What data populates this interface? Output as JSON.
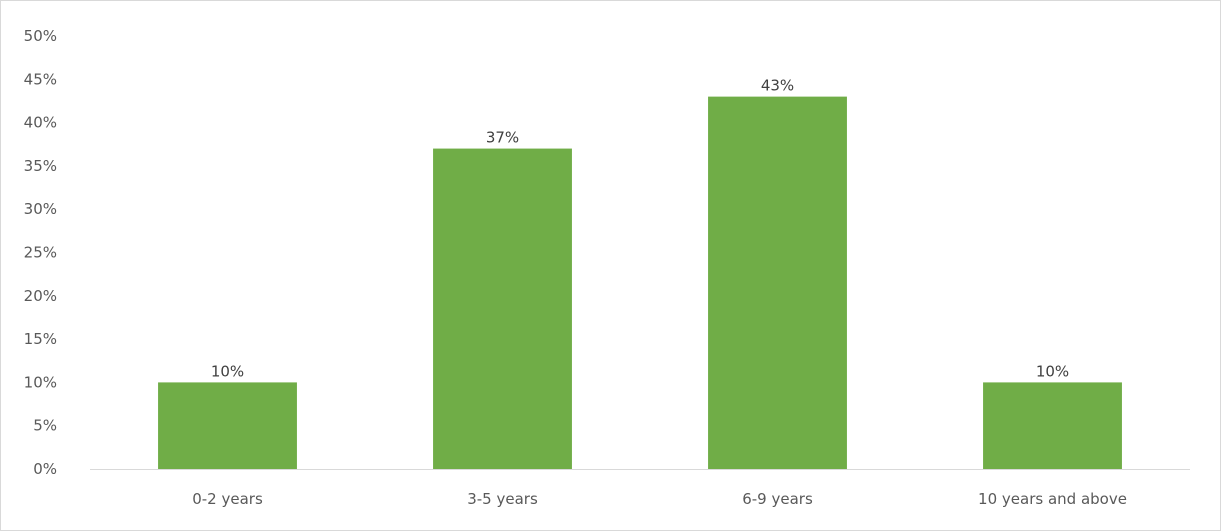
{
  "chart_data": {
    "type": "bar",
    "title": "",
    "xlabel": "",
    "ylabel": "",
    "categories": [
      "0-2 years",
      "3-5 years",
      "6-9 years",
      "10 years and above"
    ],
    "values": [
      10,
      37,
      43,
      10
    ],
    "data_labels": [
      "10%",
      "37%",
      "43%",
      "10%"
    ],
    "ylim": [
      0,
      50
    ],
    "ytick_step": 5,
    "ytick_labels": [
      "0%",
      "5%",
      "10%",
      "15%",
      "20%",
      "25%",
      "30%",
      "35%",
      "40%",
      "45%",
      "50%"
    ],
    "grid": false,
    "legend": "none",
    "bar_color": "#70ad47",
    "axis_color": "#d9d9d9"
  }
}
